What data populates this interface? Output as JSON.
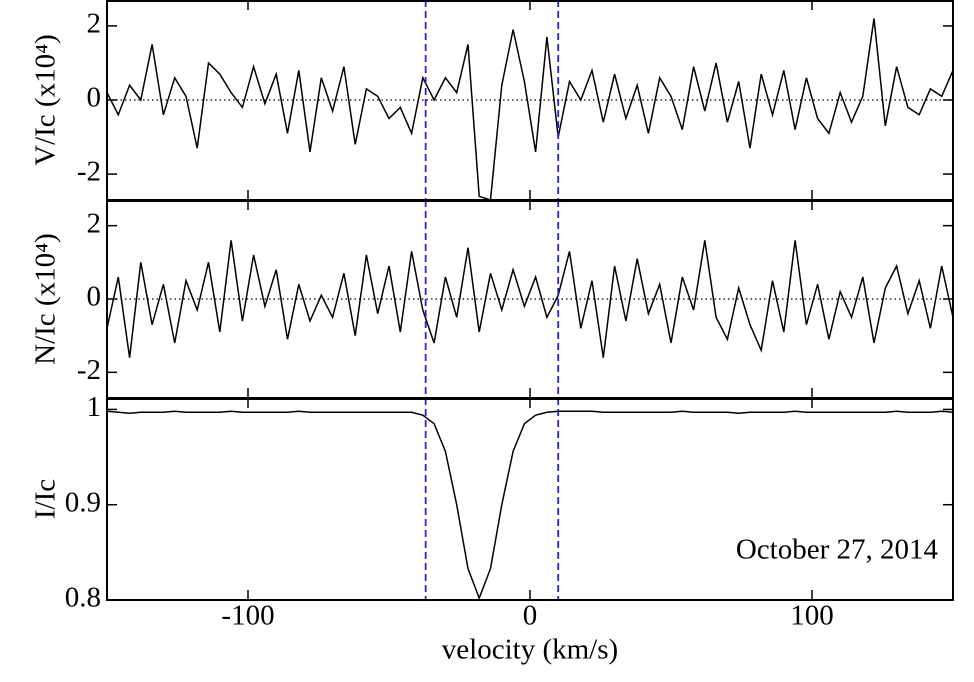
{
  "chart_data": [
    {
      "type": "line",
      "ylabel": "V/Ic (x10⁴)",
      "color": "#000000",
      "x": [
        -150,
        -146,
        -142,
        -138,
        -134,
        -130,
        -126,
        -122,
        -118,
        -114,
        -110,
        -106,
        -102,
        -98,
        -94,
        -90,
        -86,
        -82,
        -78,
        -74,
        -70,
        -66,
        -62,
        -58,
        -54,
        -50,
        -46,
        -42,
        -38,
        -34,
        -30,
        -26,
        -22,
        -18,
        -14,
        -10,
        -6,
        -2,
        2,
        6,
        10,
        14,
        18,
        22,
        26,
        30,
        34,
        38,
        42,
        46,
        50,
        54,
        58,
        62,
        66,
        70,
        74,
        78,
        82,
        86,
        90,
        94,
        98,
        102,
        106,
        110,
        114,
        118,
        122,
        126,
        130,
        134,
        138,
        142,
        146,
        150
      ],
      "values": [
        0.2,
        -0.4,
        0.4,
        0.0,
        1.5,
        -0.4,
        0.6,
        0.1,
        -1.3,
        1.0,
        0.7,
        0.2,
        -0.2,
        0.9,
        -0.1,
        0.7,
        -0.9,
        0.8,
        -1.4,
        0.6,
        -0.3,
        0.9,
        -1.2,
        0.3,
        0.1,
        -0.5,
        -0.2,
        -0.9,
        0.6,
        0.0,
        0.6,
        0.2,
        1.5,
        -2.6,
        -2.7,
        0.4,
        1.9,
        0.5,
        -1.4,
        1.7,
        -1.0,
        0.5,
        0.0,
        0.8,
        -0.6,
        0.7,
        -0.5,
        0.4,
        -0.9,
        0.6,
        0.1,
        -0.8,
        0.9,
        -0.3,
        1.0,
        -0.6,
        0.5,
        -1.3,
        0.7,
        -0.4,
        0.8,
        -0.8,
        0.6,
        -0.5,
        -0.9,
        0.2,
        -0.6,
        0.1,
        2.2,
        -0.7,
        0.9,
        -0.2,
        -0.4,
        0.3,
        0.1,
        0.8
      ],
      "xlim": [
        -150,
        150
      ],
      "xticks": [
        -100,
        0,
        100
      ],
      "xtick_labels": false,
      "ylim": [
        -2.7,
        2.7
      ],
      "yticks": [
        -2,
        0,
        2
      ],
      "zero_line": true,
      "vlines": [
        -37,
        10
      ],
      "vline_color": "#2222dd"
    },
    {
      "type": "line",
      "ylabel": "N/Ic (x10⁴)",
      "color": "#000000",
      "x": [
        -150,
        -146,
        -142,
        -138,
        -134,
        -130,
        -126,
        -122,
        -118,
        -114,
        -110,
        -106,
        -102,
        -98,
        -94,
        -90,
        -86,
        -82,
        -78,
        -74,
        -70,
        -66,
        -62,
        -58,
        -54,
        -50,
        -46,
        -42,
        -38,
        -34,
        -30,
        -26,
        -22,
        -18,
        -14,
        -10,
        -6,
        -2,
        2,
        6,
        10,
        14,
        18,
        22,
        26,
        30,
        34,
        38,
        42,
        46,
        50,
        54,
        58,
        62,
        66,
        70,
        74,
        78,
        82,
        86,
        90,
        94,
        98,
        102,
        106,
        110,
        114,
        118,
        122,
        126,
        130,
        134,
        138,
        142,
        146,
        150
      ],
      "values": [
        -0.8,
        0.6,
        -1.6,
        1.0,
        -0.7,
        0.4,
        -1.2,
        0.5,
        -0.3,
        1.0,
        -0.9,
        1.6,
        -0.6,
        1.2,
        -0.2,
        0.8,
        -1.1,
        0.4,
        -0.6,
        0.1,
        -0.5,
        0.7,
        -1.0,
        1.2,
        -0.4,
        0.9,
        -0.9,
        1.3,
        -0.3,
        -1.2,
        0.6,
        -0.5,
        1.4,
        -0.9,
        0.7,
        -0.3,
        0.8,
        -0.2,
        0.6,
        -0.5,
        0.1,
        1.3,
        -0.8,
        0.5,
        -1.6,
        0.9,
        -0.6,
        1.1,
        -0.4,
        0.4,
        -1.2,
        0.6,
        -0.3,
        1.6,
        -0.5,
        -1.1,
        0.3,
        -0.7,
        -1.4,
        0.5,
        -0.9,
        1.6,
        -0.7,
        0.4,
        -1.1,
        0.2,
        -0.5,
        0.6,
        -1.2,
        0.3,
        0.9,
        -0.4,
        0.5,
        -0.8,
        0.9,
        -0.5
      ],
      "xlim": [
        -150,
        150
      ],
      "xticks": [
        -100,
        0,
        100
      ],
      "xtick_labels": false,
      "ylim": [
        -2.7,
        2.7
      ],
      "yticks": [
        -2,
        0,
        2
      ],
      "zero_line": true,
      "vlines": [
        -37,
        10
      ],
      "vline_color": "#2222dd"
    },
    {
      "type": "line",
      "ylabel": "I/Ic",
      "xlabel": "velocity (km/s)",
      "annotation": "October 27, 2014",
      "color": "#000000",
      "x": [
        -150,
        -146,
        -142,
        -138,
        -134,
        -130,
        -126,
        -122,
        -118,
        -114,
        -110,
        -106,
        -102,
        -98,
        -94,
        -90,
        -86,
        -82,
        -78,
        -74,
        -70,
        -66,
        -62,
        -58,
        -54,
        -50,
        -46,
        -42,
        -38,
        -34,
        -30,
        -26,
        -22,
        -18,
        -14,
        -10,
        -6,
        -2,
        2,
        6,
        10,
        14,
        18,
        22,
        26,
        30,
        34,
        38,
        42,
        46,
        50,
        54,
        58,
        62,
        66,
        70,
        74,
        78,
        82,
        86,
        90,
        94,
        98,
        102,
        106,
        110,
        114,
        118,
        122,
        126,
        130,
        134,
        138,
        142,
        146,
        150
      ],
      "values": [
        0.998,
        0.997,
        0.996,
        0.997,
        0.997,
        0.997,
        0.998,
        0.997,
        0.997,
        0.997,
        0.997,
        0.998,
        0.997,
        0.997,
        0.997,
        0.997,
        0.997,
        0.998,
        0.997,
        0.997,
        0.997,
        0.997,
        0.997,
        0.997,
        0.997,
        0.997,
        0.997,
        0.997,
        0.994,
        0.985,
        0.956,
        0.9,
        0.833,
        0.802,
        0.833,
        0.9,
        0.956,
        0.985,
        0.994,
        0.997,
        0.998,
        0.998,
        0.998,
        0.998,
        0.997,
        0.997,
        0.997,
        0.997,
        0.997,
        0.997,
        0.997,
        0.998,
        0.997,
        0.997,
        0.997,
        0.997,
        0.996,
        0.997,
        0.997,
        0.997,
        0.997,
        0.998,
        0.997,
        0.997,
        0.997,
        0.997,
        0.997,
        0.997,
        0.997,
        0.997,
        0.998,
        0.997,
        0.997,
        0.997,
        0.998,
        0.997
      ],
      "xlim": [
        -150,
        150
      ],
      "xticks": [
        -100,
        0,
        100
      ],
      "xtick_labels": true,
      "ylim": [
        0.8,
        1.012
      ],
      "yticks": [
        0.8,
        0.9,
        1
      ],
      "zero_line": false,
      "vlines": [
        -37,
        10
      ],
      "vline_color": "#2222dd"
    }
  ]
}
